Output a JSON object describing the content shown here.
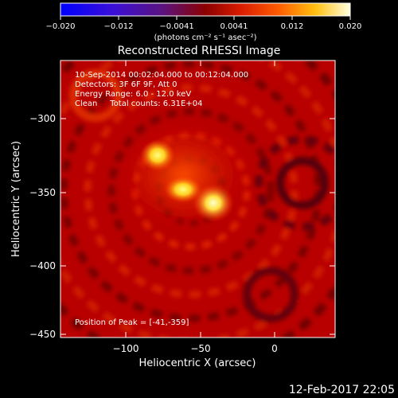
{
  "title": "Reconstructed RHESSI Image",
  "colorbar": {
    "tick_labels": [
      "−0.020",
      "−0.012",
      "−0.0041",
      "0.0041",
      "0.012",
      "0.020"
    ],
    "unit_label": "(photons cm⁻² s⁻¹ asec⁻²)",
    "range": [
      -0.02,
      0.02
    ],
    "colormap": "blue-purple-red-yellow-white"
  },
  "image_info": {
    "time_range": "10-Sep-2014 00:02:04.000 to 00:12:04.000",
    "detectors": "Detectors: 3F 6F 9F, Att 0",
    "energy_range": "Energy Range: 6.0 - 12.0 keV",
    "clean_counts": "Clean     Total counts: 6.31E+04",
    "peak_position": "Position of Peak = [-41,-359]"
  },
  "axes": {
    "xlabel": "Heliocentric X (arcsec)",
    "ylabel": "Heliocentric Y (arcsec)",
    "xticks": [
      "−100",
      "−50",
      "0"
    ],
    "yticks": [
      "−300",
      "−350",
      "−400",
      "−450"
    ]
  },
  "footer_timestamp": "12-Feb-2017 22:05"
}
